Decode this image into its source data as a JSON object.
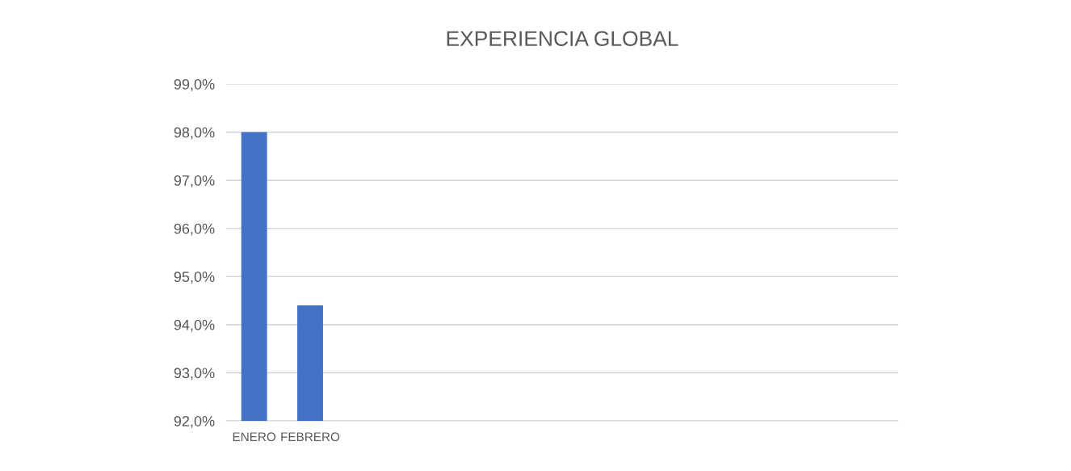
{
  "chart_data": {
    "type": "bar",
    "title": "EXPERIENCIA GLOBAL",
    "categories": [
      "ENERO",
      "FEBRERO",
      null,
      null,
      null,
      null,
      null,
      null,
      null,
      null,
      null,
      null
    ],
    "series": [
      {
        "color": "#4472c4",
        "values": [
          98.0,
          94.4,
          null,
          null,
          null,
          null,
          null,
          null,
          null,
          null,
          null,
          null
        ]
      }
    ],
    "ylim": [
      92,
      99
    ],
    "yticks": [
      {
        "value": 92,
        "label": "92,0%"
      },
      {
        "value": 93,
        "label": "93,0%"
      },
      {
        "value": 94,
        "label": "94,0%"
      },
      {
        "value": 95,
        "label": "95,0%"
      },
      {
        "value": 96,
        "label": "96,0%"
      },
      {
        "value": 97,
        "label": "97,0%"
      },
      {
        "value": 98,
        "label": "98,0%"
      },
      {
        "value": 99,
        "label": "99,0%"
      }
    ],
    "grid": "y",
    "legend": false
  }
}
